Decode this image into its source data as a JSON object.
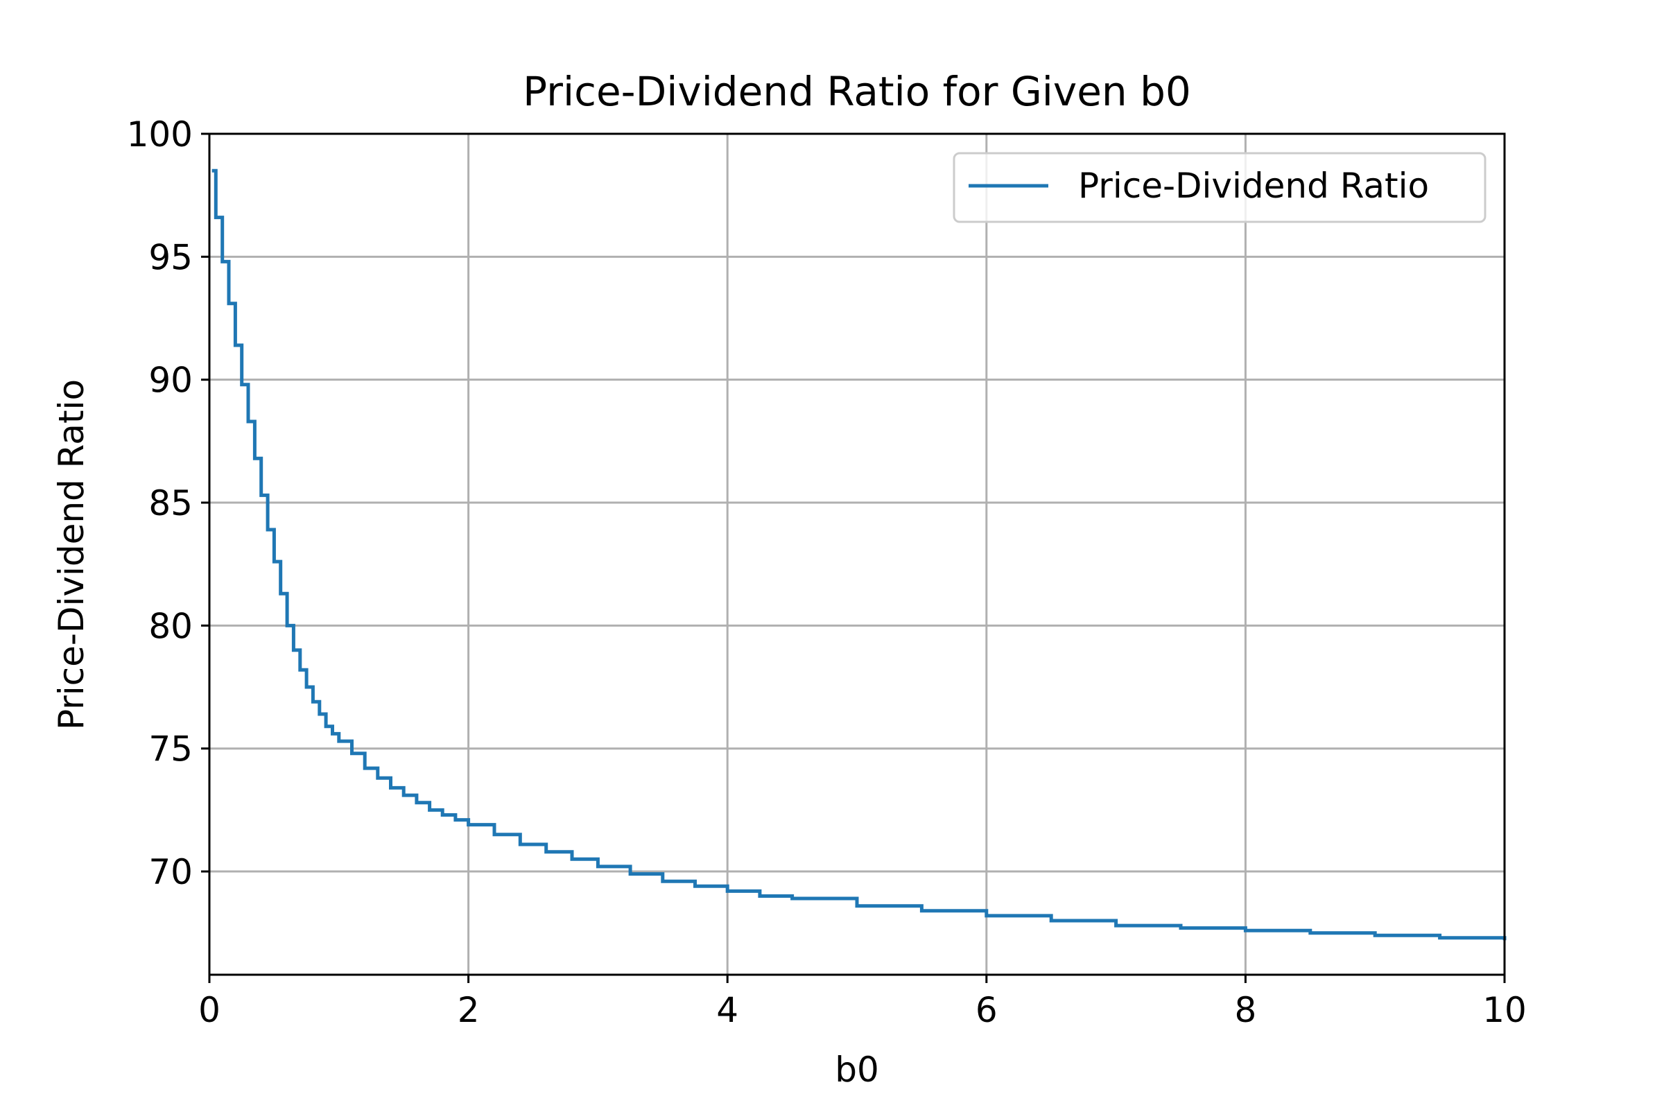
{
  "chart_data": {
    "type": "line",
    "title": "Price-Dividend Ratio for Given b0",
    "xlabel": "b0",
    "ylabel": "Price-Dividend Ratio",
    "xlim": [
      0,
      10
    ],
    "ylim": [
      65.8,
      100
    ],
    "xticks": [
      0,
      2,
      4,
      6,
      8,
      10
    ],
    "yticks": [
      70,
      75,
      80,
      85,
      90,
      95,
      100
    ],
    "grid": true,
    "legend_position": "upper right",
    "line_style": "step",
    "series": [
      {
        "name": "Price-Dividend Ratio",
        "color": "#1f77b4",
        "x": [
          0.02,
          0.05,
          0.1,
          0.15,
          0.2,
          0.25,
          0.3,
          0.35,
          0.4,
          0.45,
          0.5,
          0.55,
          0.6,
          0.65,
          0.7,
          0.75,
          0.8,
          0.85,
          0.9,
          0.95,
          1.0,
          1.1,
          1.2,
          1.3,
          1.4,
          1.5,
          1.6,
          1.7,
          1.8,
          1.9,
          2.0,
          2.2,
          2.4,
          2.6,
          2.8,
          3.0,
          3.25,
          3.5,
          3.75,
          4.0,
          4.25,
          4.5,
          5.0,
          5.5,
          6.0,
          6.5,
          7.0,
          7.5,
          8.0,
          8.5,
          9.0,
          9.5,
          10.0
        ],
        "y": [
          98.5,
          96.6,
          94.8,
          93.1,
          91.4,
          89.8,
          88.3,
          86.8,
          85.3,
          83.9,
          82.6,
          81.3,
          80.0,
          79.0,
          78.2,
          77.5,
          76.9,
          76.4,
          75.9,
          75.6,
          75.3,
          74.8,
          74.2,
          73.8,
          73.4,
          73.1,
          72.8,
          72.5,
          72.3,
          72.1,
          71.9,
          71.5,
          71.1,
          70.8,
          70.5,
          70.2,
          69.9,
          69.6,
          69.4,
          69.2,
          69.0,
          68.9,
          68.6,
          68.4,
          68.2,
          68.0,
          67.8,
          67.7,
          67.6,
          67.5,
          67.4,
          67.3,
          67.2
        ]
      }
    ]
  }
}
